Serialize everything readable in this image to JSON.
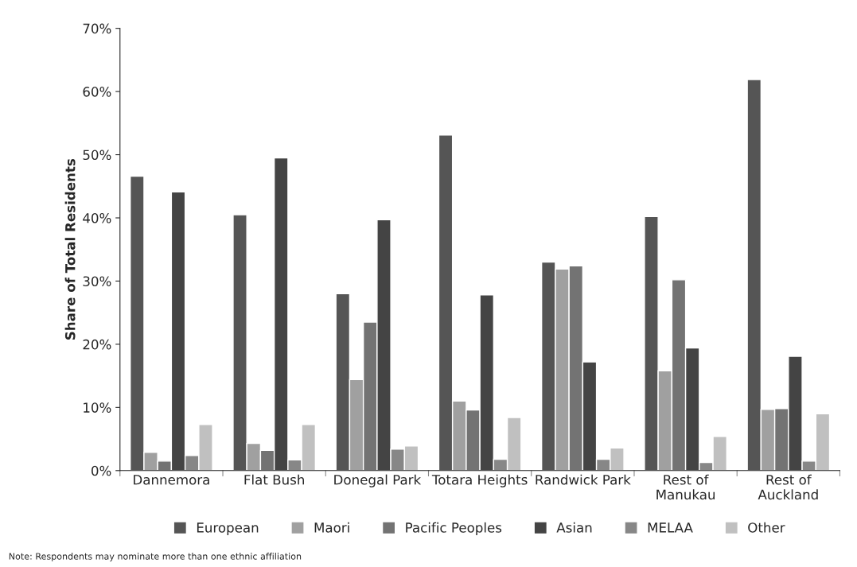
{
  "chart_data": {
    "type": "bar",
    "ylabel": "Share of Total Residents",
    "categories": [
      "Dannemora",
      "Flat Bush",
      "Donegal Park",
      "Totara Heights",
      "Randwick Park",
      "Rest of\nManukau",
      "Rest of\nAuckland"
    ],
    "series": [
      {
        "name": "European",
        "color": "#555555",
        "values": [
          46.6,
          40.5,
          28.0,
          53.1,
          33.0,
          40.2,
          61.9
        ]
      },
      {
        "name": "Maori",
        "color": "#a0a0a0",
        "values": [
          2.9,
          4.3,
          14.4,
          11.0,
          31.9,
          15.8,
          9.7
        ]
      },
      {
        "name": "Pacific Peoples",
        "color": "#737373",
        "values": [
          1.5,
          3.2,
          23.5,
          9.6,
          32.4,
          30.2,
          9.8
        ]
      },
      {
        "name": "Asian",
        "color": "#444444",
        "values": [
          44.1,
          49.5,
          39.7,
          27.8,
          17.2,
          19.4,
          18.1
        ]
      },
      {
        "name": "MELAA",
        "color": "#878787",
        "values": [
          2.4,
          1.7,
          3.4,
          1.8,
          1.8,
          1.3,
          1.5
        ]
      },
      {
        "name": "Other",
        "color": "#c0c0c0",
        "values": [
          7.3,
          7.3,
          3.9,
          8.4,
          3.6,
          5.4,
          9.0
        ]
      }
    ],
    "ylim": [
      0,
      70
    ],
    "yticks": [
      {
        "value": 0,
        "label": "0%"
      },
      {
        "value": 10,
        "label": "10%"
      },
      {
        "value": 20,
        "label": "20%"
      },
      {
        "value": 30,
        "label": "30%"
      },
      {
        "value": 40,
        "label": "40%"
      },
      {
        "value": 50,
        "label": "50%"
      },
      {
        "value": 60,
        "label": "60%"
      },
      {
        "value": 70,
        "label": "70%"
      }
    ],
    "grid": false,
    "legend": "bottom",
    "annotations": [
      "Note: Respondents may nominate more than one ethnic affiliation"
    ]
  }
}
